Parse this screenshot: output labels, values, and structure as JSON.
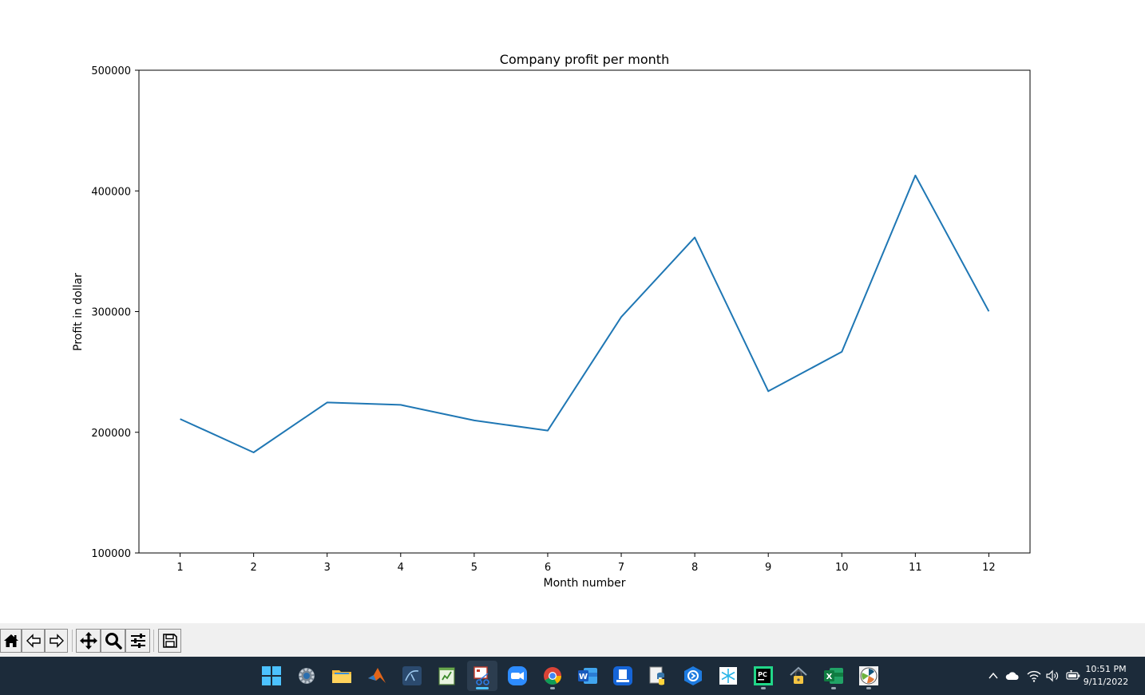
{
  "chart_data": {
    "type": "line",
    "title": "Company profit per month",
    "xlabel": "Month number",
    "ylabel": "Profit in dollar",
    "x": [
      1,
      2,
      3,
      4,
      5,
      6,
      7,
      8,
      9,
      10,
      11,
      12
    ],
    "y": [
      211000,
      183300,
      224700,
      222700,
      209800,
      201400,
      295500,
      361400,
      234000,
      266700,
      412800,
      300200
    ],
    "xticks": [
      "1",
      "2",
      "3",
      "4",
      "5",
      "6",
      "7",
      "8",
      "9",
      "10",
      "11",
      "12"
    ],
    "yticks": [
      "100000",
      "200000",
      "300000",
      "400000",
      "500000"
    ],
    "xlim": [
      0.44,
      12.56
    ],
    "ylim": [
      100000,
      500000
    ],
    "line_color": "#1f77b4",
    "grid": false,
    "legend": "none"
  },
  "toolbar": {
    "buttons": [
      "home-icon",
      "back-arrow-icon",
      "forward-arrow-icon",
      "pan-icon",
      "zoom-icon",
      "configure-subplots-icon",
      "save-icon"
    ]
  },
  "taskbar": {
    "apps": [
      "windows-start-icon",
      "settings-icon",
      "file-explorer-icon",
      "matlab-icon",
      "mysql-workbench-icon",
      "notepad-icon",
      "snipping-tool-icon",
      "zoom-icon",
      "chrome-icon",
      "word-icon",
      "frame-icon",
      "python-icon",
      "bitwarden-icon",
      "snowflake-icon",
      "pycharm-icon",
      "vpn-lock-icon",
      "excel-icon",
      "matplotlib-figure-icon"
    ],
    "tray": [
      "chevron-up-icon",
      "onedrive-icon",
      "wifi-icon",
      "speaker-icon",
      "battery-icon"
    ],
    "clock_time": "10:51 PM",
    "clock_date": "9/11/2022",
    "colors": {
      "taskbar_bg": "#1c2b3a",
      "accent": "#4cc2ff"
    }
  }
}
